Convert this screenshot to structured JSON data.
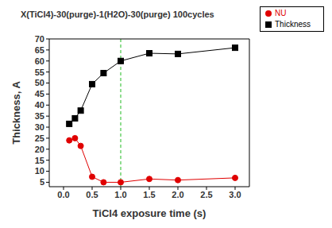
{
  "chart_data": {
    "type": "line",
    "title": "X(TiCl4)-30(purge)-1(H2O)-30(purge) 100cycles",
    "x_label": "TiCl4 exposure time (s)",
    "y_label": "Thickness, A",
    "x": [
      0.1,
      0.2,
      0.3,
      0.5,
      0.7,
      1.0,
      1.5,
      2.0,
      3.0
    ],
    "series": [
      {
        "name": "Thickness",
        "color": "#000000",
        "marker": "square",
        "values": [
          31.5,
          34,
          37.5,
          49.5,
          54.5,
          60,
          63.5,
          63.2,
          66
        ]
      },
      {
        "name": "NU",
        "color": "#e00000",
        "marker": "circle",
        "values": [
          24,
          25,
          21.5,
          7.5,
          5,
          5,
          6.5,
          6,
          7
        ]
      }
    ],
    "xlim": [
      -0.25,
      3.25
    ],
    "xticks": [
      {
        "value": 0,
        "label": "0.0"
      },
      {
        "value": 0.5,
        "label": "0.5"
      },
      {
        "value": 1,
        "label": "1.0"
      },
      {
        "value": 1.5,
        "label": "1.5"
      },
      {
        "value": 2,
        "label": "2.0"
      },
      {
        "value": 2.5,
        "label": "2.5"
      },
      {
        "value": 3,
        "label": "3.0"
      }
    ],
    "ylim": [
      3,
      70
    ],
    "yticks": [
      5,
      10,
      15,
      20,
      25,
      30,
      35,
      40,
      45,
      50,
      55,
      60,
      65,
      70
    ],
    "vline": {
      "x": 1.0,
      "color": "#22bb22"
    },
    "legend": "top-right",
    "grid": false
  }
}
